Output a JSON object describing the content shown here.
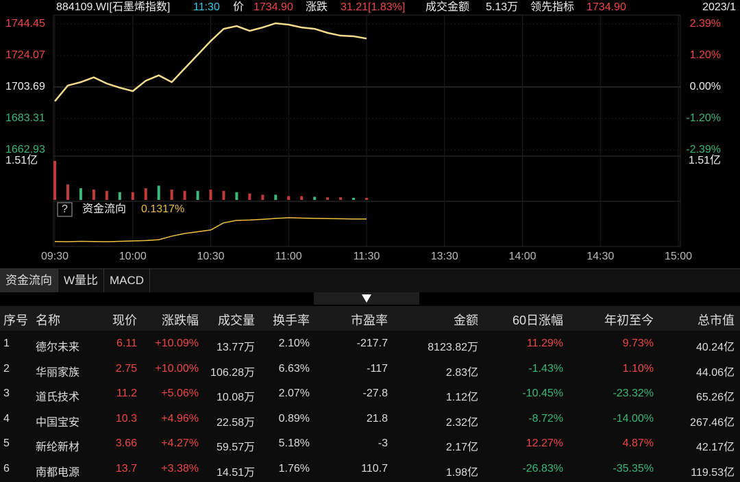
{
  "header": {
    "code": "884109.WI[石墨烯指数]",
    "time": "11:30",
    "price_label": "价",
    "price": "1734.90",
    "change_label": "涨跌",
    "change": "31.21[1.83%]",
    "amount_label": "成交金额",
    "amount": "5.13万",
    "lead_label": "领先指标",
    "lead": "1734.90",
    "date": "2023/1"
  },
  "quote_chart": {
    "ylim": [
      1662.93,
      1744.45
    ],
    "yticks": [
      1744.45,
      1724.07,
      1703.69,
      1683.31,
      1662.93
    ],
    "pct_ticks": [
      "2.39%",
      "1.20%",
      "0.00%",
      "-1.20%",
      "-2.39%"
    ],
    "volume_axis": {
      "value": 1.51,
      "label": "1.51亿"
    },
    "help": "?",
    "flow_label": "资金流向",
    "flow_value": "0.1317%",
    "times": [
      "09:30",
      "10:00",
      "10:30",
      "11:00",
      "11:30",
      "13:30",
      "14:00",
      "14:30",
      "15:00"
    ],
    "price": [
      1694.4,
      1704.6,
      1706.8,
      1709.9,
      1705.9,
      1703.2,
      1701.0,
      1707.7,
      1711.2,
      1706.8,
      1715.7,
      1724.5,
      1733.4,
      1741.3,
      1743.1,
      1740.0,
      1742.2,
      1744.9,
      1744.0,
      1742.2,
      1741.3,
      1738.7,
      1736.9,
      1736.5,
      1735.0
    ],
    "volume": [
      1.51,
      0.6,
      0.45,
      0.4,
      0.35,
      0.3,
      0.3,
      0.45,
      0.55,
      0.4,
      0.35,
      0.35,
      0.4,
      0.35,
      0.3,
      0.25,
      0.2,
      0.2,
      0.15,
      0.15,
      0.12,
      0.1,
      0.1,
      0.08,
      0.08
    ],
    "flow": [
      0.005,
      0.004,
      0.006,
      0.005,
      0.004,
      0.006,
      0.008,
      0.01,
      0.015,
      0.035,
      0.05,
      0.06,
      0.07,
      0.11,
      0.124,
      0.126,
      0.13,
      0.135,
      0.139,
      0.137,
      0.135,
      0.134,
      0.133,
      0.132,
      0.1317
    ]
  },
  "tabs": [
    "资金流向",
    "W量比",
    "MACD"
  ],
  "table": {
    "columns": [
      "序号",
      "名称",
      "现价",
      "涨跌幅",
      "成交量",
      "换手率",
      "市盈率",
      "金额",
      "60日涨幅",
      "年初至今",
      "总市值"
    ],
    "rows": [
      [
        "1",
        "德尔未来",
        "6.11",
        "+10.09%",
        "13.77万",
        "2.10%",
        "-217.7",
        "8123.82万",
        "11.29%",
        "9.73%",
        "40.24亿"
      ],
      [
        "2",
        "华丽家族",
        "2.75",
        "+10.00%",
        "106.28万",
        "6.63%",
        "-117",
        "2.83亿",
        "-1.43%",
        "1.10%",
        "44.06亿"
      ],
      [
        "3",
        "道氏技术",
        "11.2",
        "+5.06%",
        "10.08万",
        "2.07%",
        "-27.8",
        "1.12亿",
        "-10.45%",
        "-23.32%",
        "65.26亿"
      ],
      [
        "4",
        "中国宝安",
        "10.3",
        "+4.96%",
        "22.58万",
        "0.89%",
        "21.8",
        "2.32亿",
        "-8.72%",
        "-14.00%",
        "267.46亿"
      ],
      [
        "5",
        "新纶新材",
        "3.66",
        "+4.27%",
        "59.57万",
        "5.18%",
        "-3",
        "2.17亿",
        "12.27%",
        "4.87%",
        "42.17亿"
      ],
      [
        "6",
        "南都电源",
        "13.7",
        "+3.38%",
        "14.51万",
        "1.76%",
        "110.7",
        "1.98亿",
        "-26.83%",
        "-35.35%",
        "119.53亿"
      ]
    ]
  }
}
